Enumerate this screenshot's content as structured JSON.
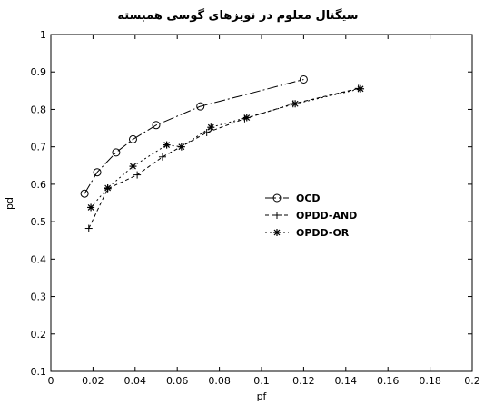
{
  "chart_data": {
    "type": "line",
    "title": "سیگنال معلوم در نویزهای گوسی همبسته",
    "xlabel": "pf",
    "ylabel": "pd",
    "xlim": [
      0,
      0.2
    ],
    "ylim": [
      0.1,
      1
    ],
    "x_ticks": [
      "0",
      "0.02",
      "0.04",
      "0.06",
      "0.08",
      "0.1",
      "0.12",
      "0.14",
      "0.16",
      "0.18",
      "0.2"
    ],
    "y_ticks": [
      "0.1",
      "0.2",
      "0.3",
      "0.4",
      "0.5",
      "0.6",
      "0.7",
      "0.8",
      "0.9",
      "1"
    ],
    "grid": false,
    "legend_position": "center-right",
    "series": [
      {
        "name": "OCD",
        "legend_label": "-0-- OCD",
        "marker": "circle",
        "dash": "dashdot",
        "x": [
          0.016,
          0.022,
          0.031,
          0.039,
          0.05,
          0.071,
          0.12
        ],
        "y": [
          0.575,
          0.632,
          0.685,
          0.72,
          0.758,
          0.808,
          0.88
        ]
      },
      {
        "name": "OPDD-AND",
        "legend_label": "-.-^.-  OPDD-AND",
        "marker": "plus",
        "dash": "dashed",
        "x": [
          0.018,
          0.027,
          0.041,
          0.053,
          0.074,
          0.092,
          0.115,
          0.146
        ],
        "y": [
          0.482,
          0.588,
          0.625,
          0.673,
          0.738,
          0.775,
          0.815,
          0.856
        ]
      },
      {
        "name": "OPDD-OR",
        "legend_label": "-.-*-.  OPDD-OR",
        "marker": "star",
        "dash": "dotted",
        "x": [
          0.019,
          0.027,
          0.039,
          0.055,
          0.062,
          0.076,
          0.093,
          0.116,
          0.147
        ],
        "y": [
          0.538,
          0.59,
          0.648,
          0.705,
          0.7,
          0.752,
          0.778,
          0.815,
          0.855
        ]
      }
    ]
  }
}
